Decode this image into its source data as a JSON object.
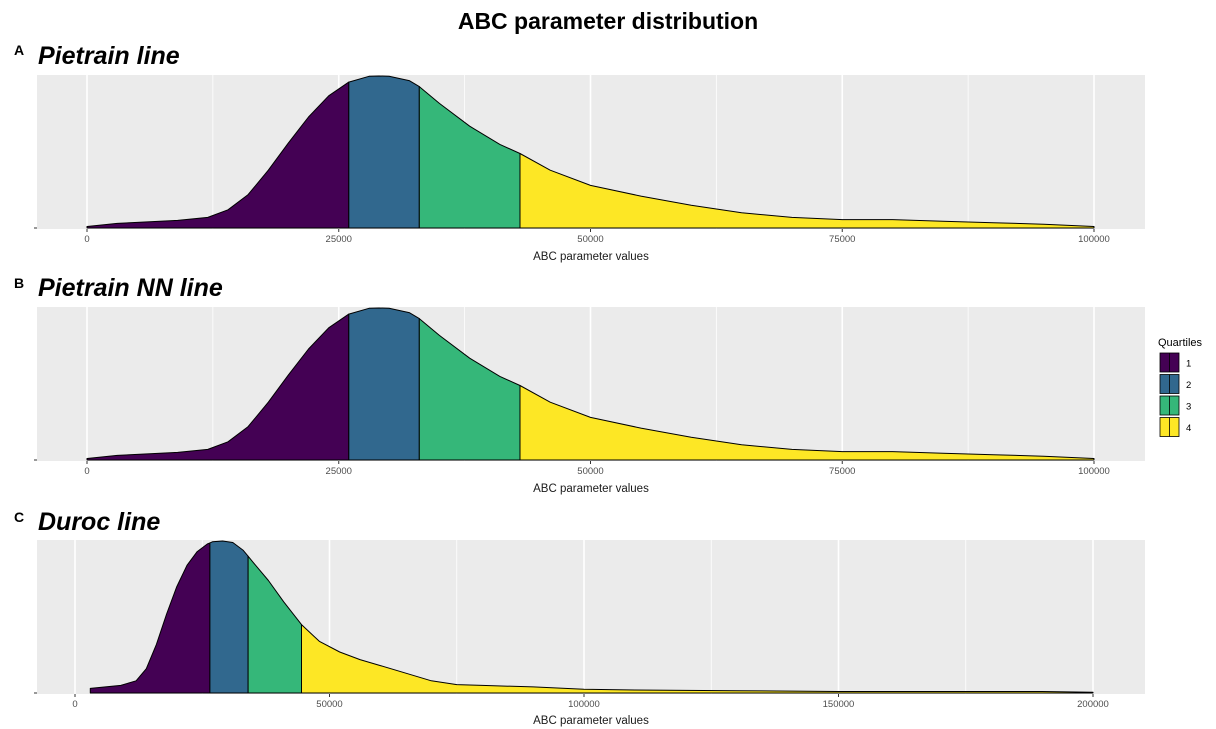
{
  "title": "ABC parameter distribution",
  "legend": {
    "title": "Quartiles",
    "items": [
      {
        "label": "1",
        "color": "#440154"
      },
      {
        "label": "2",
        "color": "#31688E"
      },
      {
        "label": "3",
        "color": "#35B779"
      },
      {
        "label": "4",
        "color": "#FDE725"
      }
    ]
  },
  "chart_data": [
    {
      "type": "area",
      "letter": "A",
      "title": "Pietrain line",
      "xlabel": "ABC parameter values",
      "xlim": [
        0,
        100000
      ],
      "xticks": [
        0,
        25000,
        50000,
        75000,
        100000
      ],
      "quartile_breaks": [
        26000,
        33000,
        43000
      ],
      "density": {
        "x": [
          0,
          3000,
          6000,
          9000,
          12000,
          14000,
          16000,
          18000,
          20000,
          22000,
          24000,
          26000,
          28000,
          29000,
          30000,
          32000,
          33000,
          35000,
          38000,
          41000,
          43000,
          46000,
          50000,
          55000,
          60000,
          65000,
          70000,
          75000,
          80000,
          85000,
          90000,
          95000,
          100000
        ],
        "y": [
          0.01,
          0.03,
          0.04,
          0.05,
          0.07,
          0.12,
          0.22,
          0.38,
          0.56,
          0.73,
          0.87,
          0.96,
          0.998,
          1.0,
          0.998,
          0.97,
          0.93,
          0.82,
          0.67,
          0.55,
          0.49,
          0.38,
          0.28,
          0.21,
          0.15,
          0.1,
          0.07,
          0.055,
          0.055,
          0.045,
          0.035,
          0.025,
          0.01
        ]
      }
    },
    {
      "type": "area",
      "letter": "B",
      "title": "Pietrain NN line",
      "xlabel": "ABC parameter values",
      "xlim": [
        0,
        100000
      ],
      "xticks": [
        0,
        25000,
        50000,
        75000,
        100000
      ],
      "quartile_breaks": [
        26000,
        33000,
        43000
      ],
      "density": {
        "x": [
          0,
          3000,
          6000,
          9000,
          12000,
          14000,
          16000,
          18000,
          20000,
          22000,
          24000,
          26000,
          28000,
          29000,
          30000,
          32000,
          33000,
          35000,
          38000,
          41000,
          43000,
          46000,
          50000,
          55000,
          60000,
          65000,
          70000,
          75000,
          80000,
          85000,
          90000,
          95000,
          100000
        ],
        "y": [
          0.01,
          0.03,
          0.04,
          0.05,
          0.07,
          0.12,
          0.22,
          0.38,
          0.56,
          0.73,
          0.87,
          0.96,
          0.998,
          1.0,
          0.998,
          0.97,
          0.93,
          0.82,
          0.67,
          0.55,
          0.49,
          0.38,
          0.28,
          0.21,
          0.15,
          0.1,
          0.07,
          0.055,
          0.055,
          0.045,
          0.035,
          0.025,
          0.01
        ]
      }
    },
    {
      "type": "area",
      "letter": "C",
      "title": "Duroc line",
      "xlabel": "ABC parameter values",
      "xlim": [
        0,
        200000
      ],
      "xticks": [
        0,
        50000,
        100000,
        150000,
        200000
      ],
      "quartile_breaks": [
        26500,
        34000,
        44500
      ],
      "density": {
        "x": [
          3000,
          6000,
          9000,
          12000,
          14000,
          16000,
          18000,
          20000,
          22000,
          24000,
          26000,
          27000,
          29000,
          31000,
          33000,
          35000,
          38000,
          41000,
          44500,
          48000,
          52000,
          56000,
          60000,
          65000,
          70000,
          75000,
          80000,
          90000,
          100000,
          110000,
          130000,
          150000,
          170000,
          190000,
          200000
        ],
        "y": [
          0.03,
          0.04,
          0.05,
          0.08,
          0.16,
          0.32,
          0.52,
          0.7,
          0.84,
          0.93,
          0.98,
          0.995,
          1.0,
          0.99,
          0.94,
          0.86,
          0.74,
          0.6,
          0.45,
          0.34,
          0.27,
          0.22,
          0.18,
          0.13,
          0.08,
          0.055,
          0.05,
          0.04,
          0.025,
          0.02,
          0.015,
          0.01,
          0.01,
          0.01,
          0.005
        ]
      }
    }
  ]
}
